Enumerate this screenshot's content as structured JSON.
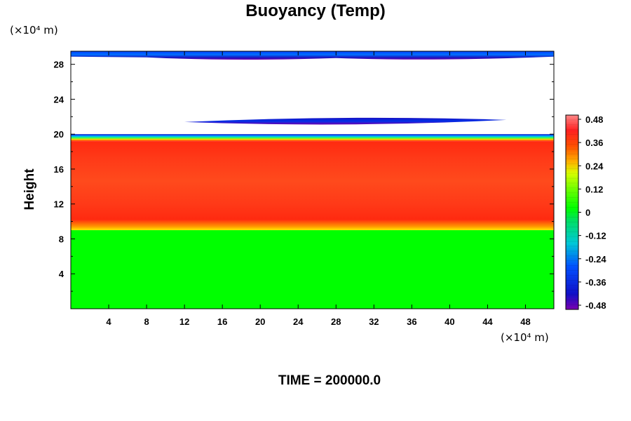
{
  "chart_data": {
    "type": "heatmap",
    "title": "Buoyancy (Temp)",
    "ylabel": "Height",
    "x_unit": "(×10⁴ m)",
    "y_unit": "(×10⁴ m)",
    "x_ticks": [
      4,
      8,
      12,
      16,
      20,
      24,
      28,
      32,
      36,
      40,
      44,
      48
    ],
    "y_ticks": [
      4,
      8,
      12,
      16,
      20,
      24,
      28
    ],
    "xlim": [
      0,
      51
    ],
    "ylim": [
      0,
      29.5
    ],
    "colorbar": {
      "ticks": [
        "0.48",
        "0.36",
        "0.24",
        "0.12",
        "0",
        "-0.12",
        "-0.24",
        "-0.36",
        "-0.48"
      ],
      "range": [
        -0.48,
        0.48
      ]
    },
    "regions": [
      {
        "name": "lower layer",
        "y_range": [
          0,
          9
        ],
        "value": 0.0
      },
      {
        "name": "transition",
        "y_range": [
          9,
          10
        ],
        "value": 0.2
      },
      {
        "name": "warm layer",
        "y_range": [
          10,
          19.2
        ],
        "value": 0.38
      },
      {
        "name": "upper transition",
        "y_range": [
          19.2,
          20.0
        ],
        "value": 0.0
      },
      {
        "name": "mid-level cold band",
        "x_range": [
          12,
          46
        ],
        "y_range": [
          21.2,
          21.9
        ],
        "value": -0.36
      },
      {
        "name": "top cold band",
        "y_range": [
          28.8,
          29.5
        ],
        "value": -0.36
      }
    ],
    "time_label": "TIME = 200000.0"
  }
}
